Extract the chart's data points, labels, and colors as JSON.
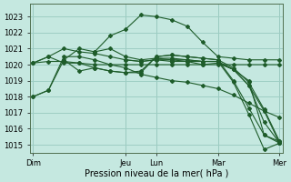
{
  "background_color": "#c5e8e0",
  "grid_color": "#9ecec4",
  "line_color": "#1e5c2a",
  "xlabel": "Pression niveau de la mer( hPa )",
  "ylim": [
    1014.5,
    1023.8
  ],
  "yticks": [
    1015,
    1016,
    1017,
    1018,
    1019,
    1020,
    1021,
    1022,
    1023
  ],
  "day_labels": [
    "Dim",
    "Jeu",
    "Lun",
    "Mar",
    "Mer"
  ],
  "day_positions": [
    0,
    6,
    8,
    12,
    16
  ],
  "xlim": [
    -0.2,
    16.2
  ],
  "series": [
    {
      "x": [
        0,
        1,
        2,
        3,
        4,
        5,
        6,
        7,
        8,
        9,
        10,
        11,
        12,
        13,
        14,
        15,
        16
      ],
      "y": [
        1018.0,
        1018.4,
        1020.3,
        1021.0,
        1020.8,
        1021.8,
        1022.2,
        1023.1,
        1023.0,
        1022.8,
        1022.4,
        1021.4,
        1020.5,
        1020.4,
        1020.3,
        1020.3,
        1020.3
      ]
    },
    {
      "x": [
        0,
        1,
        2,
        3,
        4,
        5,
        6,
        7,
        8,
        9,
        10,
        11,
        12,
        13,
        14,
        15,
        16
      ],
      "y": [
        1020.1,
        1020.5,
        1020.1,
        1020.1,
        1019.8,
        1019.6,
        1019.5,
        1019.5,
        1020.5,
        1020.6,
        1020.5,
        1020.4,
        1020.3,
        1019.8,
        1018.9,
        1017.2,
        1015.2
      ]
    },
    {
      "x": [
        0,
        1,
        2,
        3,
        4,
        5,
        6,
        7,
        8,
        9,
        10,
        11,
        12
      ],
      "y": [
        1020.1,
        1020.5,
        1021.0,
        1020.8,
        1020.7,
        1020.5,
        1020.3,
        1020.2,
        1020.3,
        1020.3,
        1020.3,
        1020.2,
        1020.2
      ]
    },
    {
      "x": [
        0,
        1,
        2,
        3,
        4,
        5,
        6,
        7,
        8,
        9,
        10,
        11,
        12,
        13,
        14,
        15,
        16
      ],
      "y": [
        1018.0,
        1018.4,
        1020.5,
        1020.5,
        1020.3,
        1020.0,
        1019.8,
        1019.4,
        1019.2,
        1019.0,
        1018.9,
        1018.7,
        1018.5,
        1018.1,
        1017.6,
        1017.1,
        1016.7
      ]
    },
    {
      "x": [
        0,
        1,
        2,
        3,
        4,
        5,
        6,
        7,
        8,
        9,
        10,
        11,
        12,
        13,
        14,
        15,
        16
      ],
      "y": [
        1020.1,
        1020.2,
        1020.2,
        1020.1,
        1020.0,
        1020.0,
        1020.0,
        1020.0,
        1020.0,
        1020.0,
        1020.0,
        1020.0,
        1020.0,
        1020.0,
        1020.0,
        1020.0,
        1020.0
      ]
    },
    {
      "x": [
        2,
        3,
        4,
        5,
        6,
        7,
        8,
        9,
        10,
        11,
        12,
        13,
        14,
        15,
        16
      ],
      "y": [
        1020.3,
        1019.6,
        1019.8,
        1019.6,
        1019.5,
        1019.6,
        1020.5,
        1020.6,
        1020.5,
        1020.4,
        1020.3,
        1019.0,
        1017.3,
        1015.6,
        1015.1
      ]
    },
    {
      "x": [
        4,
        5,
        6,
        7,
        8,
        9,
        10,
        11,
        12,
        13,
        14,
        15,
        16
      ],
      "y": [
        1020.8,
        1021.0,
        1020.5,
        1020.3,
        1020.4,
        1020.4,
        1020.3,
        1020.2,
        1020.2,
        1019.7,
        1018.7,
        1017.1,
        1015.1
      ]
    },
    {
      "x": [
        6,
        7,
        8,
        9,
        10,
        11,
        12,
        13,
        14,
        15,
        16
      ],
      "y": [
        1020.3,
        1020.2,
        1020.3,
        1020.2,
        1020.2,
        1020.2,
        1020.2,
        1018.9,
        1016.9,
        1014.7,
        1015.1
      ]
    },
    {
      "x": [
        8,
        9,
        10,
        11,
        12,
        13,
        14,
        15,
        16
      ],
      "y": [
        1020.4,
        1020.3,
        1020.2,
        1020.0,
        1020.1,
        1019.7,
        1019.0,
        1015.6,
        1015.2
      ]
    },
    {
      "x": [
        12,
        13,
        14,
        15,
        16
      ],
      "y": [
        1020.1,
        1019.7,
        1018.7,
        1016.4,
        1015.1
      ]
    }
  ]
}
